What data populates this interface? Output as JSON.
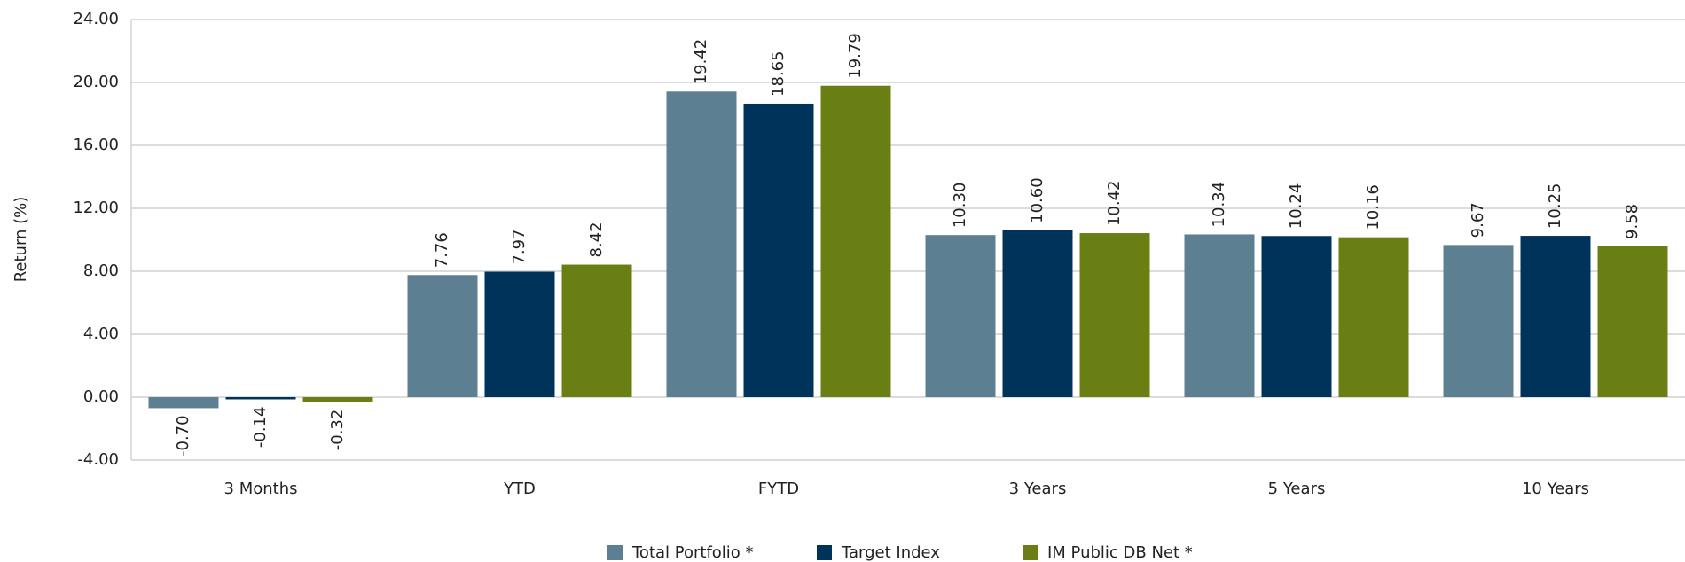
{
  "chart_data": {
    "type": "bar",
    "y_axis_label": "Return (%)",
    "categories": [
      "3 Months",
      "YTD",
      "FYTD",
      "3 Years",
      "5 Years",
      "10 Years"
    ],
    "series": [
      {
        "name": "Total Portfolio *",
        "color": "#5d7f92",
        "values": [
          -0.7,
          7.76,
          19.42,
          10.3,
          10.34,
          9.67
        ],
        "value_labels": [
          "-0.70",
          "7.76",
          "19.42",
          "10.30",
          "10.34",
          "9.67"
        ]
      },
      {
        "name": "Target Index",
        "color": "#003359",
        "values": [
          -0.14,
          7.97,
          18.65,
          10.6,
          10.24,
          10.25
        ],
        "value_labels": [
          "-0.14",
          "7.97",
          "18.65",
          "10.60",
          "10.24",
          "10.25"
        ]
      },
      {
        "name": "IM Public DB Net *",
        "color": "#6a7f13",
        "values": [
          -0.32,
          8.42,
          19.79,
          10.42,
          10.16,
          9.58
        ],
        "value_labels": [
          "-0.32",
          "8.42",
          "19.79",
          "10.42",
          "10.16",
          "9.58"
        ]
      }
    ],
    "ylim": [
      -4,
      24
    ],
    "yticks": [
      {
        "value": -4,
        "label": "-4.00"
      },
      {
        "value": 0,
        "label": "0.00"
      },
      {
        "value": 4,
        "label": "4.00"
      },
      {
        "value": 8,
        "label": "8.00"
      },
      {
        "value": 12,
        "label": "12.00"
      },
      {
        "value": 16,
        "label": "16.00"
      },
      {
        "value": 20,
        "label": "20.00"
      },
      {
        "value": 24,
        "label": "24.00"
      }
    ],
    "grid": true,
    "legend": "bottom"
  }
}
